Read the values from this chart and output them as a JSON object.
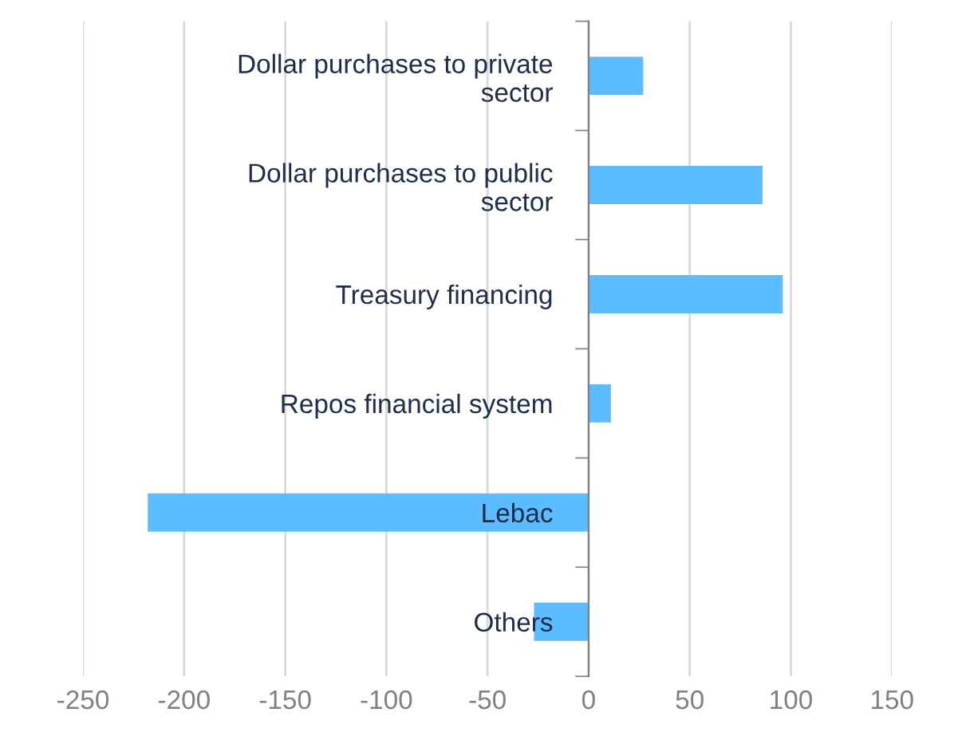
{
  "chart_data": {
    "type": "bar",
    "orientation": "horizontal",
    "categories": [
      "Dollar purchases to private\nsector",
      "Dollar purchases to public\nsector",
      "Treasury financing",
      "Repos financial system",
      "Lebac",
      "Others"
    ],
    "values": [
      27,
      86,
      96,
      11,
      -218,
      -27
    ],
    "color": "#5bbcff",
    "xlim": [
      -250,
      150
    ],
    "xticks": [
      -250,
      -200,
      -150,
      -100,
      -50,
      0,
      50,
      100,
      150
    ],
    "grid": "x",
    "legend": false
  }
}
